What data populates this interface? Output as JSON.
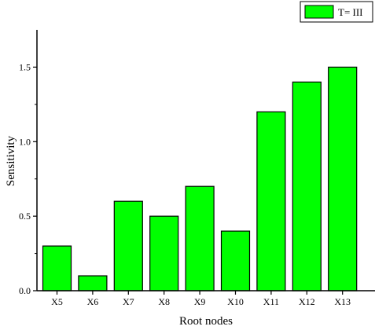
{
  "chart_data": {
    "type": "bar",
    "categories": [
      "X5",
      "X6",
      "X7",
      "X8",
      "X9",
      "X10",
      "X11",
      "X12",
      "X13"
    ],
    "series": [
      {
        "name": "T= III",
        "values": [
          0.3,
          0.1,
          0.6,
          0.5,
          0.7,
          0.4,
          1.2,
          1.4,
          1.5
        ]
      }
    ],
    "title": "",
    "xlabel": "Root nodes",
    "ylabel": "Sensitivity",
    "ylim": [
      0,
      1.75
    ],
    "yticks": [
      "0.0",
      "0.5",
      "1.0",
      "1.5"
    ],
    "ytick_values": [
      0.0,
      0.5,
      1.0,
      1.5
    ],
    "legend_position": "top-right",
    "grid": false,
    "colors": {
      "bar_fill": "#00ff00",
      "bar_stroke": "#000000",
      "axis": "#000000"
    }
  }
}
